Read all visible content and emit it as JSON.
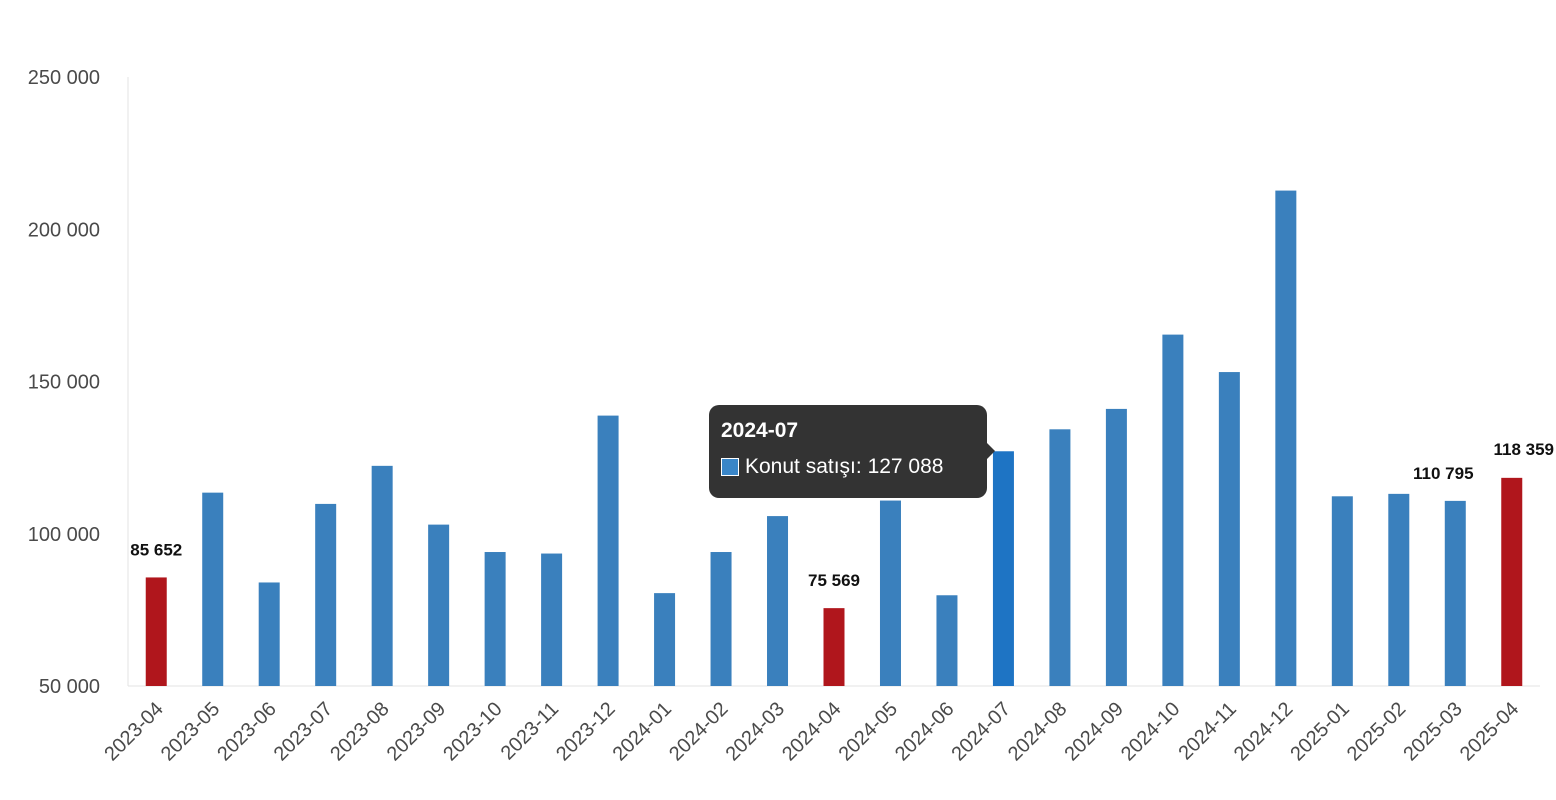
{
  "chart_data": {
    "type": "bar",
    "categories": [
      "2023-04",
      "2023-05",
      "2023-06",
      "2023-07",
      "2023-08",
      "2023-09",
      "2023-10",
      "2023-11",
      "2023-12",
      "2024-01",
      "2024-02",
      "2024-03",
      "2024-04",
      "2024-05",
      "2024-06",
      "2024-07",
      "2024-08",
      "2024-09",
      "2024-10",
      "2024-11",
      "2024-12",
      "2025-01",
      "2025-02",
      "2025-03",
      "2025-04"
    ],
    "series": [
      {
        "name": "Konut satışı",
        "values": [
          85652,
          113500,
          84000,
          109800,
          122300,
          103000,
          94000,
          93500,
          138800,
          80500,
          94000,
          105800,
          75569,
          110900,
          79800,
          127088,
          134300,
          141000,
          165400,
          153100,
          212700,
          112300,
          113100,
          110795,
          118359
        ]
      }
    ],
    "highlighted_indices": [
      0,
      12,
      24
    ],
    "hovered_index": 15,
    "data_labels": [
      {
        "index": 0,
        "text": "85 652"
      },
      {
        "index": 12,
        "text": "75 569"
      },
      {
        "index": 23,
        "text": "110 795"
      },
      {
        "index": 24,
        "text": "118 359"
      }
    ],
    "ylim": [
      50000,
      250000
    ],
    "yticks": [
      "50 000",
      "100 000",
      "150 000",
      "200 000",
      "250 000"
    ],
    "ytick_values": [
      50000,
      100000,
      150000,
      200000,
      250000
    ],
    "colors": {
      "bar": "#3a80bd",
      "highlight": "#b0161c",
      "hover": "#1e74c4"
    },
    "grid": false,
    "title": "",
    "xlabel": "",
    "ylabel": ""
  },
  "tooltip": {
    "title": "2024-07",
    "series_label": "Konut satışı: 127 088"
  }
}
